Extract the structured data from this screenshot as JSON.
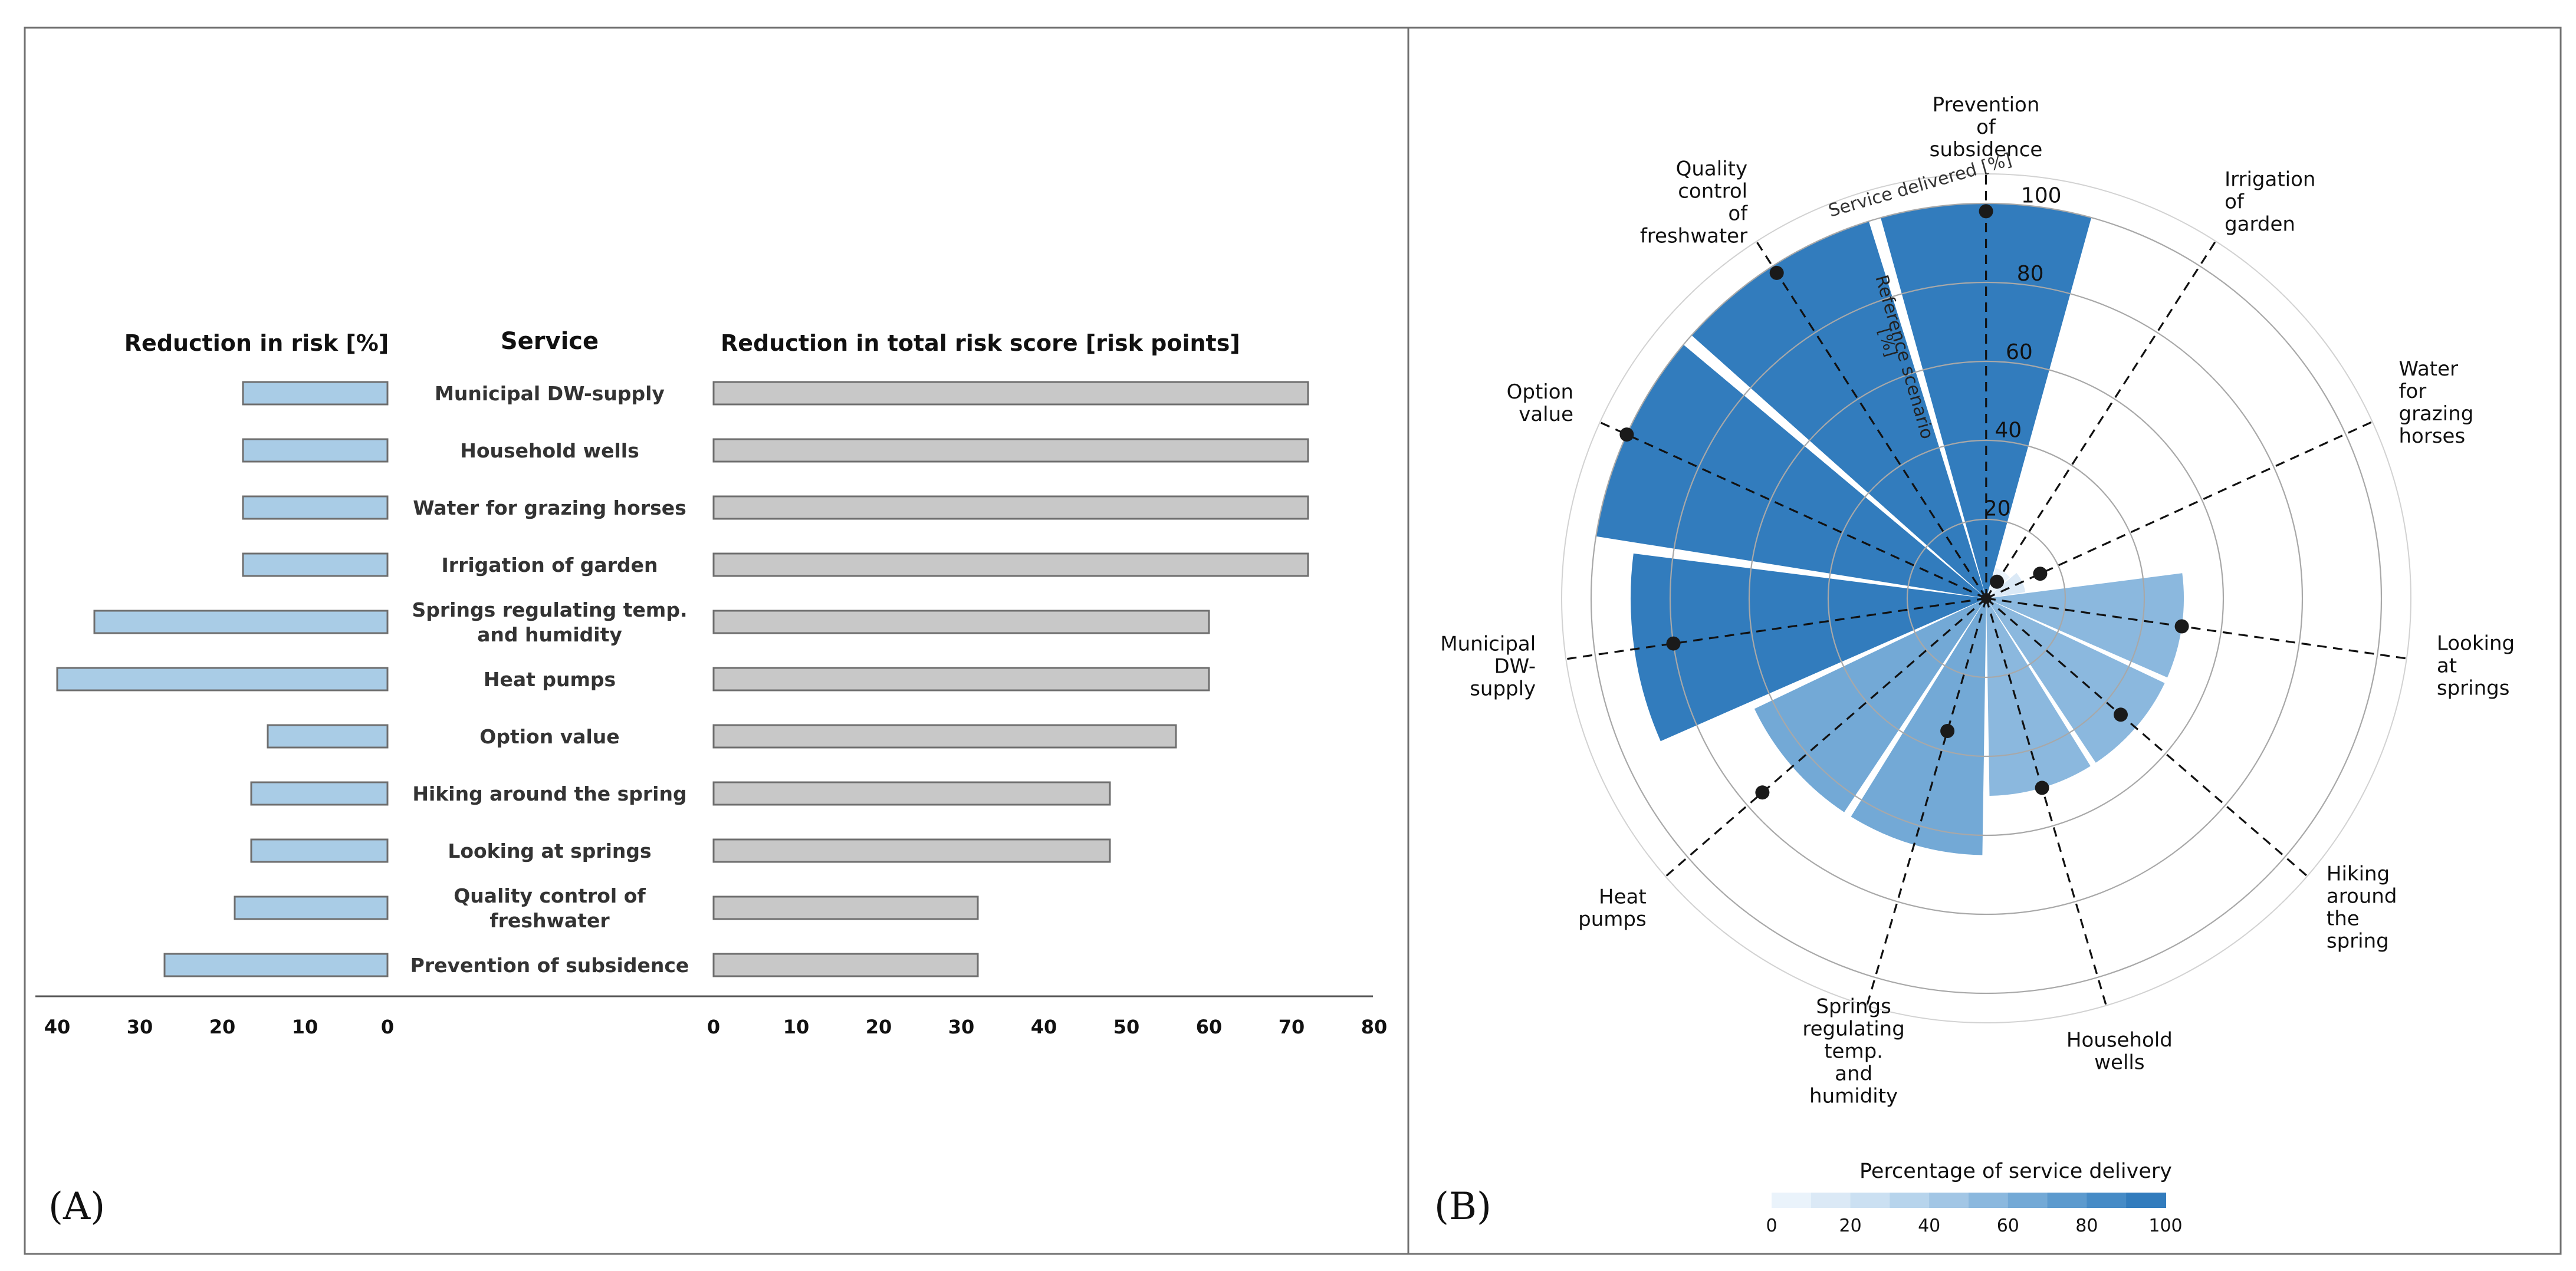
{
  "panel_a": {
    "label": "(A)",
    "chart_data": {
      "type": "bar",
      "title_left": "Reduction in risk [%]",
      "title_center": "Service",
      "title_right": "Reduction in total risk score [risk points]",
      "services": [
        [
          "Municipal DW-supply"
        ],
        [
          "Household wells"
        ],
        [
          "Water for grazing horses"
        ],
        [
          "Irrigation of garden"
        ],
        [
          "Springs regulating temp.",
          "and humidity"
        ],
        [
          "Heat pumps"
        ],
        [
          "Option value"
        ],
        [
          "Hiking around the spring"
        ],
        [
          "Looking at springs"
        ],
        [
          "Quality control of",
          "freshwater"
        ],
        [
          "Prevention of subsidence"
        ]
      ],
      "risk_reduction_pct": [
        17.5,
        17.5,
        17.5,
        17.5,
        35.5,
        40,
        14.5,
        16.5,
        16.5,
        18.5,
        27
      ],
      "risk_points": [
        72,
        72,
        72,
        72,
        60,
        60,
        56,
        48,
        48,
        32,
        32
      ],
      "left_axis": {
        "ticks": [
          40,
          30,
          20,
          10,
          0
        ],
        "range": [
          40,
          0
        ]
      },
      "right_axis": {
        "ticks": [
          0,
          10,
          20,
          30,
          40,
          50,
          60,
          70,
          80
        ],
        "range": [
          0,
          80
        ]
      },
      "colors": {
        "left_bar": "#a9cce6",
        "right_bar": "#c8c8c8",
        "stroke": "#6e6e6e"
      }
    }
  },
  "panel_b": {
    "label": "(B)",
    "chart_data": {
      "type": "polar-bar",
      "radial_ticks": [
        20,
        40,
        60,
        80,
        100
      ],
      "radial_axis_label": "Service delivered [%]",
      "reference_label": "Reference scenario",
      "reference_unit": "[%]",
      "categories": [
        [
          "Prevention",
          "of",
          "subsidence"
        ],
        [
          "Irrigation",
          "of",
          "garden"
        ],
        [
          "Water",
          "for",
          "grazing",
          "horses"
        ],
        [
          "Looking",
          "at",
          "springs"
        ],
        [
          "Hiking",
          "around",
          "the",
          "spring"
        ],
        [
          "Household",
          "wells"
        ],
        [
          "Springs",
          "regulating",
          "temp.",
          "and",
          "humidity"
        ],
        [
          "Heat",
          "pumps"
        ],
        [
          "Municipal",
          "DW-",
          "supply"
        ],
        [
          "Option",
          "value"
        ],
        [
          "Quality",
          "control",
          "of",
          "freshwater"
        ]
      ],
      "service_delivered": [
        100,
        8,
        10,
        50,
        50,
        50,
        65,
        65,
        90,
        100,
        100
      ],
      "reference_scenario": [
        98,
        5,
        15,
        50,
        45,
        50,
        35,
        75,
        80,
        100,
        98
      ],
      "legend": {
        "title": "Percentage of service delivery",
        "ticks": [
          0,
          20,
          40,
          60,
          80,
          100
        ],
        "colors": [
          "#eaf3fb",
          "#dbe9f6",
          "#cbe0f2",
          "#b7d4ec",
          "#a2c6e5",
          "#8bb8de",
          "#73a9d6",
          "#5c9ace",
          "#468bc6",
          "#327cbd"
        ]
      }
    }
  }
}
